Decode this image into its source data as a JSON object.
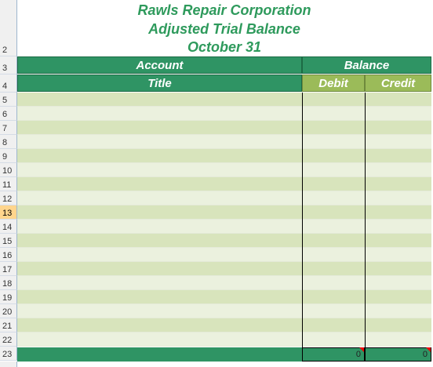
{
  "title_lines": [
    "Rawls Repair Corporation",
    "Adjusted Trial Balance",
    "October 31"
  ],
  "row_numbers": [
    "2",
    "3",
    "4",
    "5",
    "6",
    "7",
    "8",
    "9",
    "10",
    "11",
    "12",
    "13",
    "14",
    "15",
    "16",
    "17",
    "18",
    "19",
    "20",
    "21",
    "22",
    "23"
  ],
  "table": {
    "header": {
      "account": "Account",
      "balance": "Balance",
      "title": "Title",
      "debit": "Debit",
      "credit": "Credit"
    },
    "totals": {
      "debit": 0,
      "credit": 0
    }
  }
}
